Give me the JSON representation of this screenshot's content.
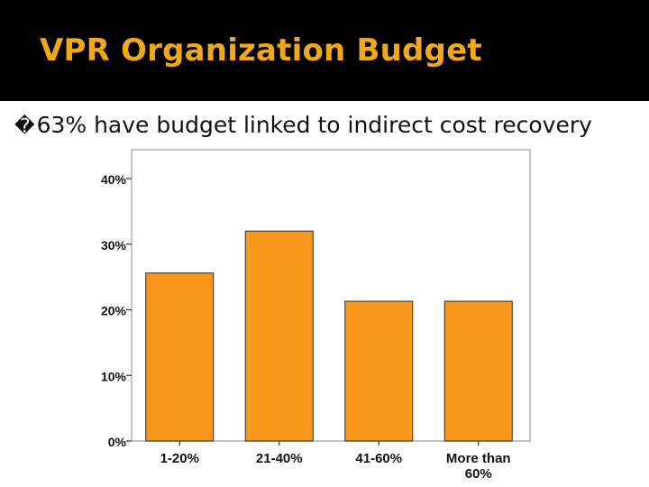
{
  "slide": {
    "title": "VPR Organization Budget",
    "bullet_glyph": "�",
    "bullet_text": "63% have budget linked to indirect cost recovery"
  },
  "colors": {
    "title_bar": "#000000",
    "title_text": "#f0a818",
    "bar_fill": "#f7981d",
    "bar_stroke": "#2a2a2a",
    "plot_border": "#b0b0b0"
  },
  "chart_data": {
    "type": "bar",
    "title": "",
    "xlabel": "",
    "ylabel": "",
    "categories": [
      "1-20%",
      "21-40%",
      "41-60%",
      "More than 60%"
    ],
    "category_lines": [
      [
        "1-20%"
      ],
      [
        "21-40%"
      ],
      [
        "41-60%"
      ],
      [
        "More than",
        "60%"
      ]
    ],
    "values": [
      25.6,
      32.0,
      21.3,
      21.3
    ],
    "ylim": [
      0,
      40
    ],
    "yticks": [
      0,
      10,
      20,
      30,
      40
    ],
    "ytick_labels": [
      "0%",
      "10%",
      "20%",
      "30%",
      "40%"
    ],
    "grid": false,
    "legend": "none"
  }
}
